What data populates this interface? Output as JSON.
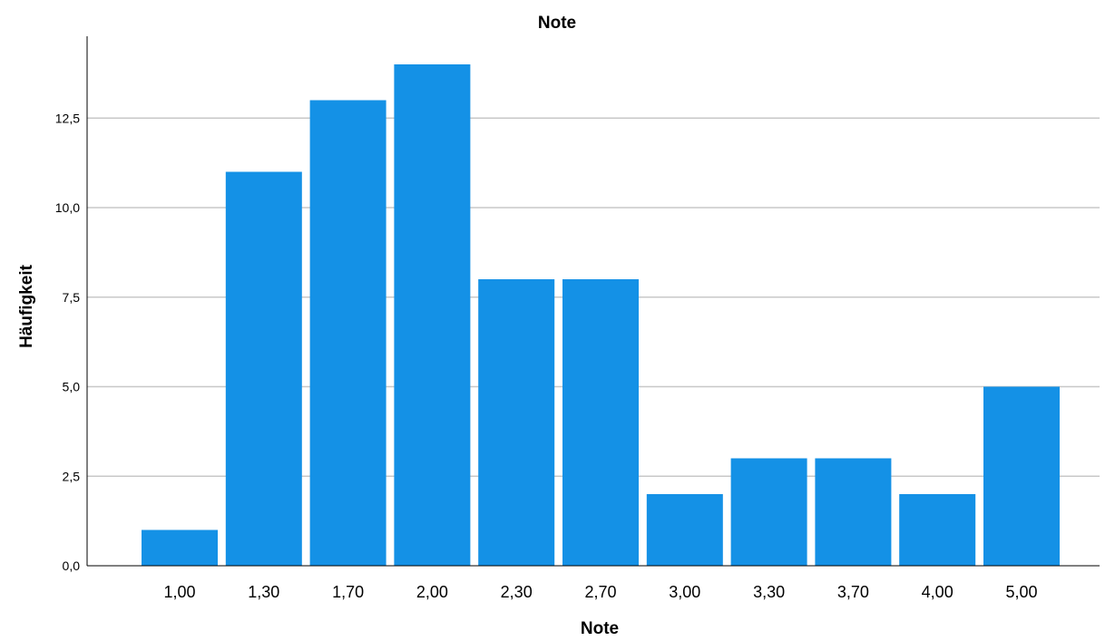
{
  "chart_data": {
    "type": "bar",
    "title": "Note",
    "xlabel": "Note",
    "ylabel": "Häufigkeit",
    "categories": [
      "1,00",
      "1,30",
      "1,70",
      "2,00",
      "2,30",
      "2,70",
      "3,00",
      "3,30",
      "3,70",
      "4,00",
      "5,00"
    ],
    "values": [
      1,
      11,
      13,
      14,
      8,
      8,
      2,
      3,
      3,
      2,
      5
    ],
    "ylim": [
      0,
      15
    ],
    "yticks": [
      {
        "value": 0,
        "label": "0,0"
      },
      {
        "value": 2.5,
        "label": "2,5"
      },
      {
        "value": 5,
        "label": "5,0"
      },
      {
        "value": 7.5,
        "label": "7,5"
      },
      {
        "value": 10,
        "label": "10,0"
      },
      {
        "value": 12.5,
        "label": "12,5"
      }
    ],
    "grid": true,
    "bar_color": "#1491e6"
  }
}
